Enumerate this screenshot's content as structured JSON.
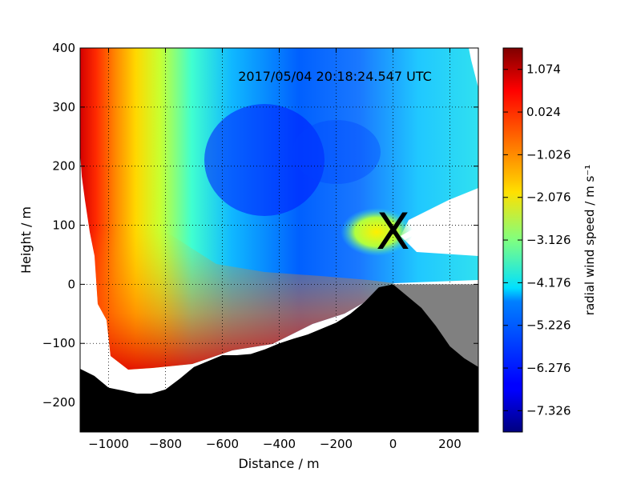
{
  "chart_data": {
    "type": "heatmap",
    "title": "2017/05/04 20:18:24.547 UTC",
    "xlabel": "Distance / m",
    "ylabel": "Height / m",
    "xlim": [
      -1100,
      300
    ],
    "ylim": [
      -250,
      400
    ],
    "x_ticks": [
      -1000,
      -800,
      -600,
      -400,
      -200,
      0,
      200
    ],
    "x_tick_labels": [
      "−1000",
      "−800",
      "−600",
      "−400",
      "−200",
      "0",
      "200"
    ],
    "y_ticks": [
      -200,
      -100,
      0,
      100,
      200,
      300,
      400
    ],
    "y_tick_labels": [
      "−200",
      "−100",
      "0",
      "100",
      "200",
      "300",
      "400"
    ],
    "grid": true,
    "colormap": "jet",
    "colorbar": {
      "label": "radial wind speed / m s⁻¹",
      "vmin": -7.85,
      "vmax": 1.6,
      "ticks": [
        1.074,
        0.024,
        -1.026,
        -2.076,
        -3.126,
        -4.176,
        -5.226,
        -6.276,
        -7.326
      ],
      "tick_labels": [
        "1.074",
        "0.024",
        "−1.026",
        "−2.076",
        "−3.126",
        "−4.176",
        "−5.226",
        "−6.276",
        "−7.326"
      ]
    },
    "marker": {
      "label": "X",
      "x": 0,
      "y": 90,
      "color": "#808080"
    },
    "terrain_profile": {
      "x": [
        -1100,
        -1050,
        -1000,
        -950,
        -900,
        -850,
        -800,
        -750,
        -700,
        -650,
        -600,
        -550,
        -500,
        -450,
        -400,
        -350,
        -300,
        -250,
        -200,
        -150,
        -100,
        -50,
        0,
        50,
        100,
        150,
        200,
        250,
        300
      ],
      "y": [
        -143,
        -155,
        -175,
        -180,
        -185,
        -185,
        -178,
        -160,
        -140,
        -130,
        -120,
        -120,
        -118,
        -110,
        -100,
        -92,
        -85,
        -75,
        -65,
        -50,
        -30,
        -5,
        0,
        -20,
        -40,
        -70,
        -105,
        -125,
        -140
      ]
    },
    "unobserved_region": {
      "x_range": [
        0,
        300
      ],
      "y_top": 0,
      "color": "#808080"
    }
  },
  "colors": {
    "terrain": "#000000",
    "shadow": "#808080",
    "grid": "#000000"
  }
}
